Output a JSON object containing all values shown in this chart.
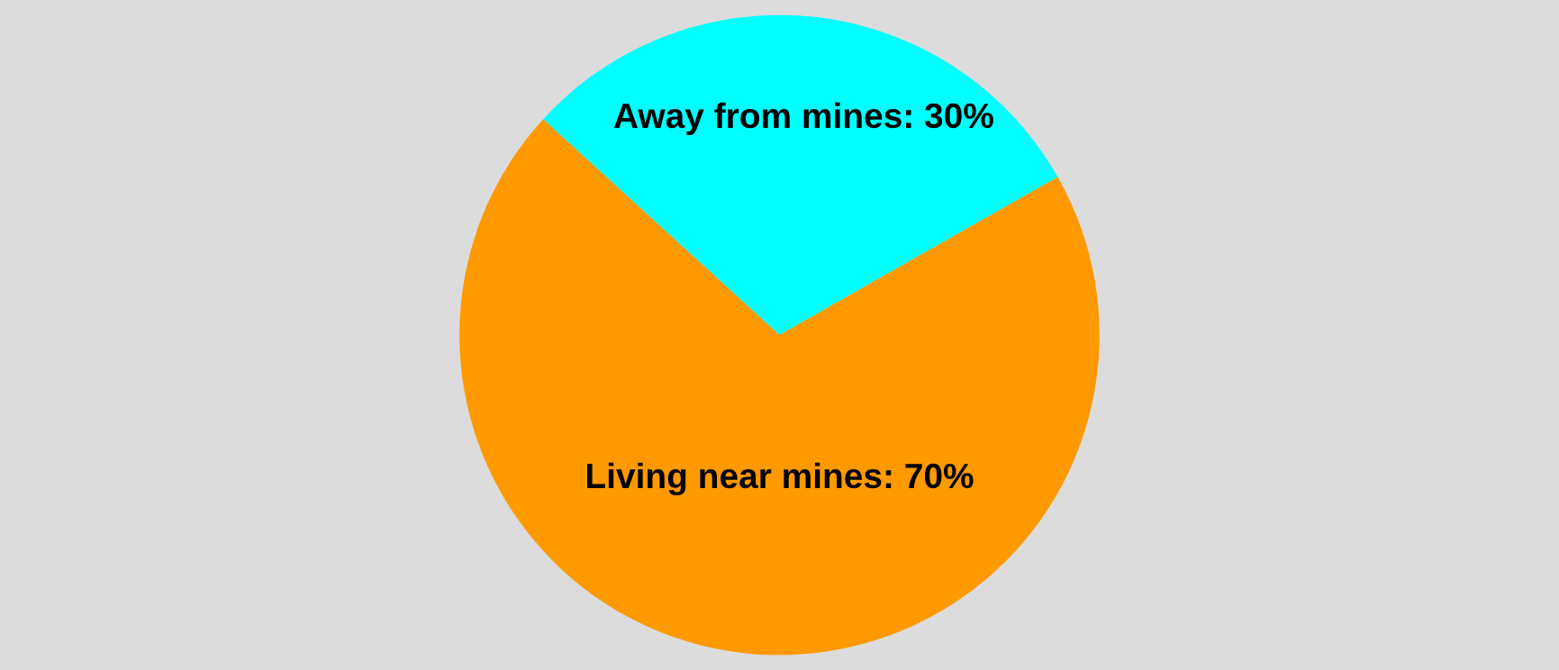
{
  "chart_data": {
    "type": "pie",
    "categories": [
      "Away from mines",
      "Living near mines"
    ],
    "values": [
      30,
      70
    ],
    "colors": [
      "#00ffff",
      "#ff9900"
    ],
    "value_labels": [
      ": 30%",
      ": 70%"
    ]
  }
}
